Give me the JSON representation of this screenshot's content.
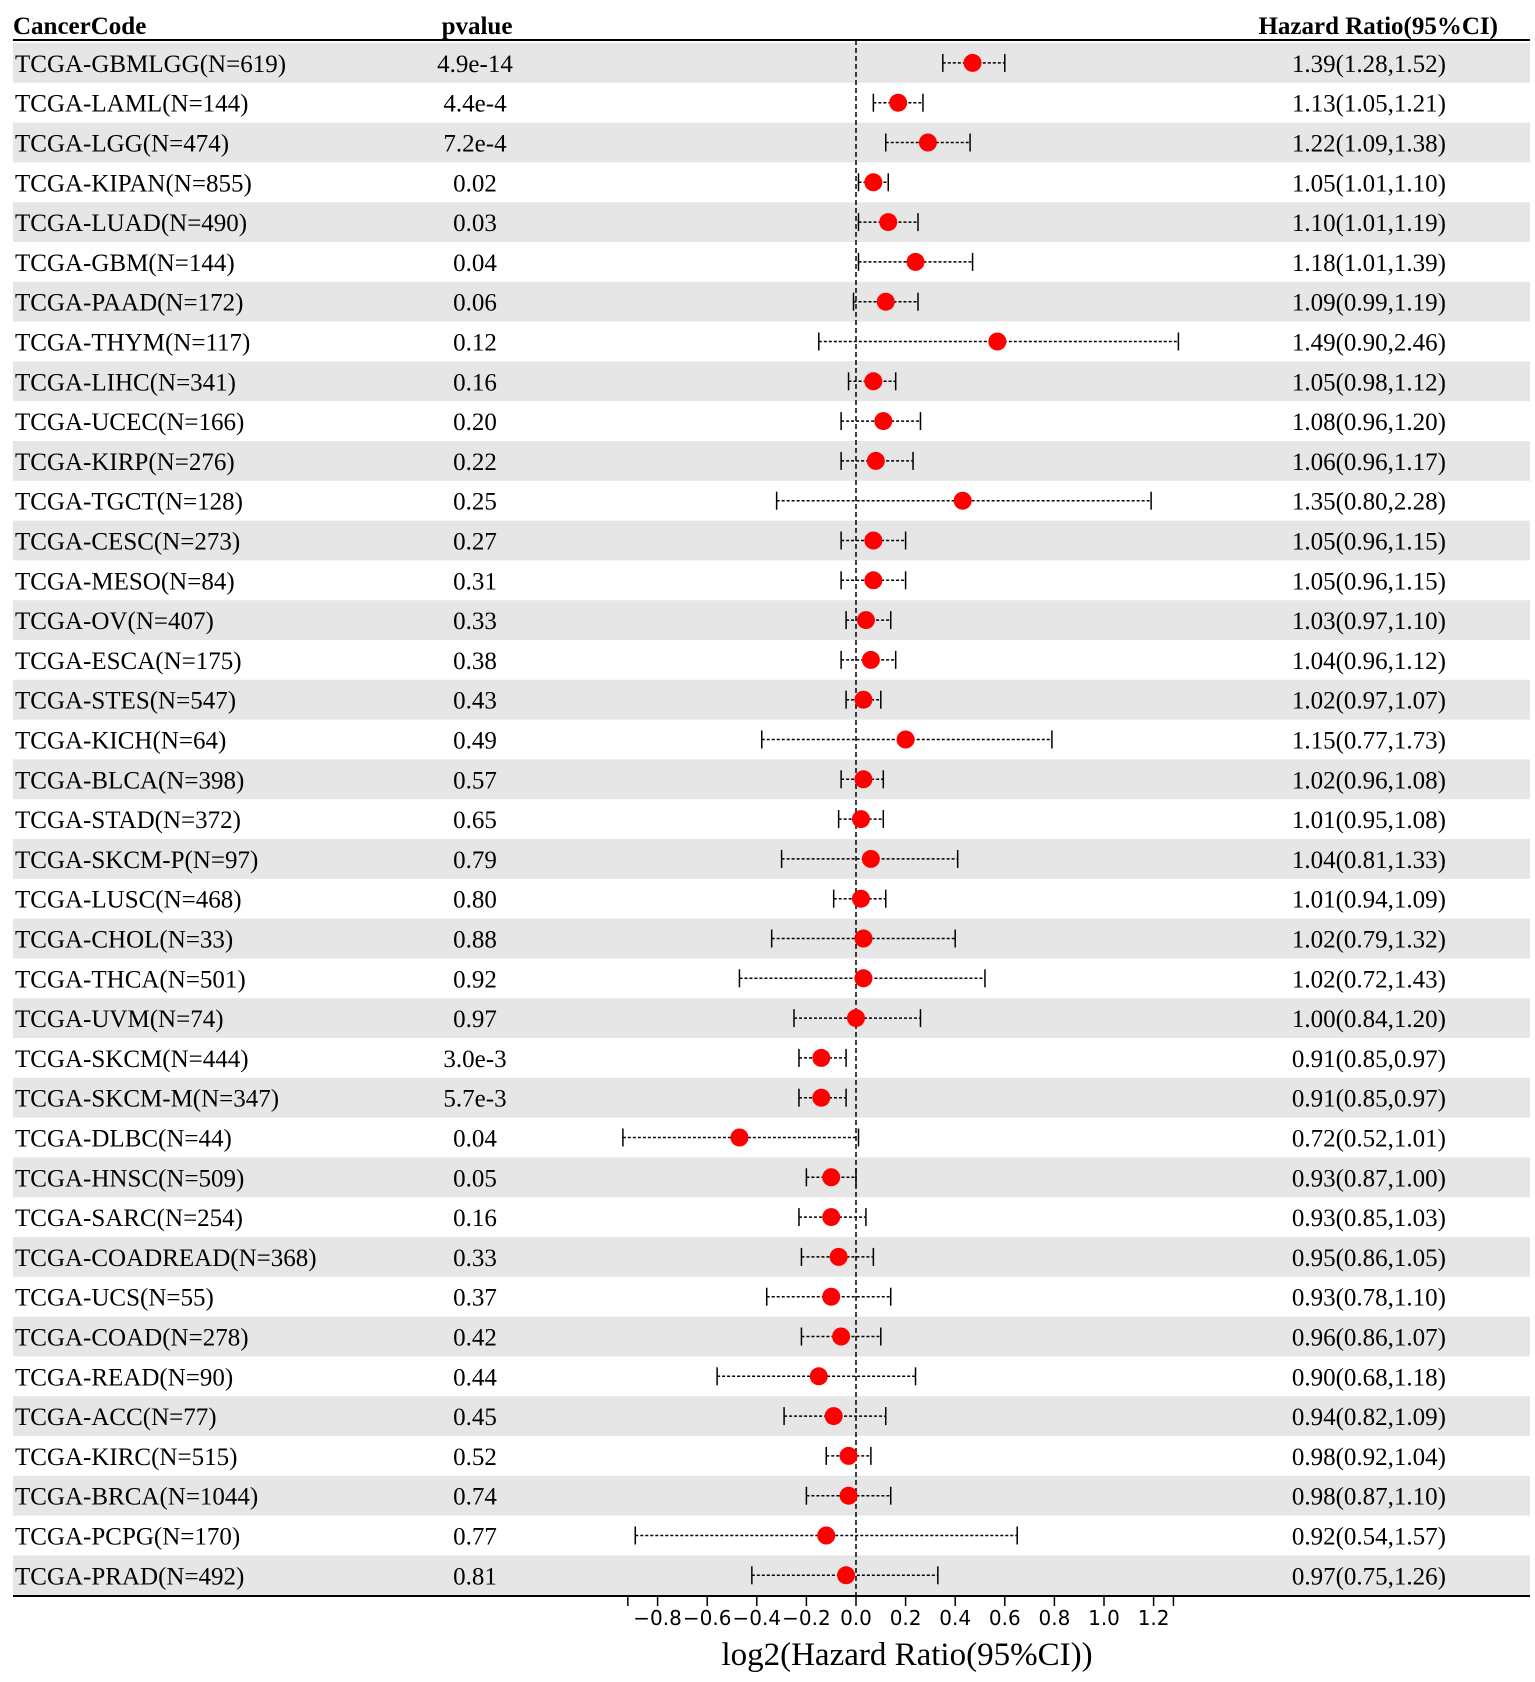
{
  "headers": {
    "cancer_code": "CancerCode",
    "pvalue": "pvalue",
    "hazard_ratio": "Hazard Ratio(95%CI)"
  },
  "chart_data": {
    "type": "forest",
    "xlabel": "log2(Hazard Ratio(95%CI))",
    "xlim": [
      -0.92,
      1.28
    ],
    "xticks": [
      -0.8,
      -0.6,
      -0.4,
      -0.2,
      0.0,
      0.2,
      0.4,
      0.6,
      0.8,
      1.0,
      1.2
    ],
    "xtick_labels": [
      "−0.8",
      "−0.6",
      "−0.4",
      "−0.2",
      "0.0",
      "0.2",
      "0.4",
      "0.6",
      "0.8",
      "1.0",
      "1.2"
    ],
    "reference_line": 0,
    "point_color": "#ff0000",
    "stripe_color": "#e6e6e6",
    "rows": [
      {
        "label": "TCGA-GBMLGG(N=619)",
        "pvalue": "4.9e-14",
        "hr_text": "1.39(1.28,1.52)",
        "estimate": 0.47,
        "lower": 0.35,
        "upper": 0.6
      },
      {
        "label": "TCGA-LAML(N=144)",
        "pvalue": "4.4e-4",
        "hr_text": "1.13(1.05,1.21)",
        "estimate": 0.17,
        "lower": 0.07,
        "upper": 0.27
      },
      {
        "label": "TCGA-LGG(N=474)",
        "pvalue": "7.2e-4",
        "hr_text": "1.22(1.09,1.38)",
        "estimate": 0.29,
        "lower": 0.12,
        "upper": 0.46
      },
      {
        "label": "TCGA-KIPAN(N=855)",
        "pvalue": "0.02",
        "hr_text": "1.05(1.01,1.10)",
        "estimate": 0.07,
        "lower": 0.01,
        "upper": 0.13
      },
      {
        "label": "TCGA-LUAD(N=490)",
        "pvalue": "0.03",
        "hr_text": "1.10(1.01,1.19)",
        "estimate": 0.13,
        "lower": 0.01,
        "upper": 0.25
      },
      {
        "label": "TCGA-GBM(N=144)",
        "pvalue": "0.04",
        "hr_text": "1.18(1.01,1.39)",
        "estimate": 0.24,
        "lower": 0.01,
        "upper": 0.47
      },
      {
        "label": "TCGA-PAAD(N=172)",
        "pvalue": "0.06",
        "hr_text": "1.09(0.99,1.19)",
        "estimate": 0.12,
        "lower": -0.01,
        "upper": 0.25
      },
      {
        "label": "TCGA-THYM(N=117)",
        "pvalue": "0.12",
        "hr_text": "1.49(0.90,2.46)",
        "estimate": 0.57,
        "lower": -0.15,
        "upper": 1.3
      },
      {
        "label": "TCGA-LIHC(N=341)",
        "pvalue": "0.16",
        "hr_text": "1.05(0.98,1.12)",
        "estimate": 0.07,
        "lower": -0.03,
        "upper": 0.16
      },
      {
        "label": "TCGA-UCEC(N=166)",
        "pvalue": "0.20",
        "hr_text": "1.08(0.96,1.20)",
        "estimate": 0.11,
        "lower": -0.06,
        "upper": 0.26
      },
      {
        "label": "TCGA-KIRP(N=276)",
        "pvalue": "0.22",
        "hr_text": "1.06(0.96,1.17)",
        "estimate": 0.08,
        "lower": -0.06,
        "upper": 0.23
      },
      {
        "label": "TCGA-TGCT(N=128)",
        "pvalue": "0.25",
        "hr_text": "1.35(0.80,2.28)",
        "estimate": 0.43,
        "lower": -0.32,
        "upper": 1.19
      },
      {
        "label": "TCGA-CESC(N=273)",
        "pvalue": "0.27",
        "hr_text": "1.05(0.96,1.15)",
        "estimate": 0.07,
        "lower": -0.06,
        "upper": 0.2
      },
      {
        "label": "TCGA-MESO(N=84)",
        "pvalue": "0.31",
        "hr_text": "1.05(0.96,1.15)",
        "estimate": 0.07,
        "lower": -0.06,
        "upper": 0.2
      },
      {
        "label": "TCGA-OV(N=407)",
        "pvalue": "0.33",
        "hr_text": "1.03(0.97,1.10)",
        "estimate": 0.04,
        "lower": -0.04,
        "upper": 0.14
      },
      {
        "label": "TCGA-ESCA(N=175)",
        "pvalue": "0.38",
        "hr_text": "1.04(0.96,1.12)",
        "estimate": 0.06,
        "lower": -0.06,
        "upper": 0.16
      },
      {
        "label": "TCGA-STES(N=547)",
        "pvalue": "0.43",
        "hr_text": "1.02(0.97,1.07)",
        "estimate": 0.03,
        "lower": -0.04,
        "upper": 0.1
      },
      {
        "label": "TCGA-KICH(N=64)",
        "pvalue": "0.49",
        "hr_text": "1.15(0.77,1.73)",
        "estimate": 0.2,
        "lower": -0.38,
        "upper": 0.79
      },
      {
        "label": "TCGA-BLCA(N=398)",
        "pvalue": "0.57",
        "hr_text": "1.02(0.96,1.08)",
        "estimate": 0.03,
        "lower": -0.06,
        "upper": 0.11
      },
      {
        "label": "TCGA-STAD(N=372)",
        "pvalue": "0.65",
        "hr_text": "1.01(0.95,1.08)",
        "estimate": 0.02,
        "lower": -0.07,
        "upper": 0.11
      },
      {
        "label": "TCGA-SKCM-P(N=97)",
        "pvalue": "0.79",
        "hr_text": "1.04(0.81,1.33)",
        "estimate": 0.06,
        "lower": -0.3,
        "upper": 0.41
      },
      {
        "label": "TCGA-LUSC(N=468)",
        "pvalue": "0.80",
        "hr_text": "1.01(0.94,1.09)",
        "estimate": 0.02,
        "lower": -0.09,
        "upper": 0.12
      },
      {
        "label": "TCGA-CHOL(N=33)",
        "pvalue": "0.88",
        "hr_text": "1.02(0.79,1.32)",
        "estimate": 0.03,
        "lower": -0.34,
        "upper": 0.4
      },
      {
        "label": "TCGA-THCA(N=501)",
        "pvalue": "0.92",
        "hr_text": "1.02(0.72,1.43)",
        "estimate": 0.03,
        "lower": -0.47,
        "upper": 0.52
      },
      {
        "label": "TCGA-UVM(N=74)",
        "pvalue": "0.97",
        "hr_text": "1.00(0.84,1.20)",
        "estimate": 0.0,
        "lower": -0.25,
        "upper": 0.26
      },
      {
        "label": "TCGA-SKCM(N=444)",
        "pvalue": "3.0e-3",
        "hr_text": "0.91(0.85,0.97)",
        "estimate": -0.14,
        "lower": -0.23,
        "upper": -0.04
      },
      {
        "label": "TCGA-SKCM-M(N=347)",
        "pvalue": "5.7e-3",
        "hr_text": "0.91(0.85,0.97)",
        "estimate": -0.14,
        "lower": -0.23,
        "upper": -0.04
      },
      {
        "label": "TCGA-DLBC(N=44)",
        "pvalue": "0.04",
        "hr_text": "0.72(0.52,1.01)",
        "estimate": -0.47,
        "lower": -0.94,
        "upper": 0.01
      },
      {
        "label": "TCGA-HNSC(N=509)",
        "pvalue": "0.05",
        "hr_text": "0.93(0.87,1.00)",
        "estimate": -0.1,
        "lower": -0.2,
        "upper": 0.0
      },
      {
        "label": "TCGA-SARC(N=254)",
        "pvalue": "0.16",
        "hr_text": "0.93(0.85,1.03)",
        "estimate": -0.1,
        "lower": -0.23,
        "upper": 0.04
      },
      {
        "label": "TCGA-COADREAD(N=368)",
        "pvalue": "0.33",
        "hr_text": "0.95(0.86,1.05)",
        "estimate": -0.07,
        "lower": -0.22,
        "upper": 0.07
      },
      {
        "label": "TCGA-UCS(N=55)",
        "pvalue": "0.37",
        "hr_text": "0.93(0.78,1.10)",
        "estimate": -0.1,
        "lower": -0.36,
        "upper": 0.14
      },
      {
        "label": "TCGA-COAD(N=278)",
        "pvalue": "0.42",
        "hr_text": "0.96(0.86,1.07)",
        "estimate": -0.06,
        "lower": -0.22,
        "upper": 0.1
      },
      {
        "label": "TCGA-READ(N=90)",
        "pvalue": "0.44",
        "hr_text": "0.90(0.68,1.18)",
        "estimate": -0.15,
        "lower": -0.56,
        "upper": 0.24
      },
      {
        "label": "TCGA-ACC(N=77)",
        "pvalue": "0.45",
        "hr_text": "0.94(0.82,1.09)",
        "estimate": -0.09,
        "lower": -0.29,
        "upper": 0.12
      },
      {
        "label": "TCGA-KIRC(N=515)",
        "pvalue": "0.52",
        "hr_text": "0.98(0.92,1.04)",
        "estimate": -0.03,
        "lower": -0.12,
        "upper": 0.06
      },
      {
        "label": "TCGA-BRCA(N=1044)",
        "pvalue": "0.74",
        "hr_text": "0.98(0.87,1.10)",
        "estimate": -0.03,
        "lower": -0.2,
        "upper": 0.14
      },
      {
        "label": "TCGA-PCPG(N=170)",
        "pvalue": "0.77",
        "hr_text": "0.92(0.54,1.57)",
        "estimate": -0.12,
        "lower": -0.89,
        "upper": 0.65
      },
      {
        "label": "TCGA-PRAD(N=492)",
        "pvalue": "0.81",
        "hr_text": "0.97(0.75,1.26)",
        "estimate": -0.04,
        "lower": -0.42,
        "upper": 0.33
      }
    ]
  }
}
